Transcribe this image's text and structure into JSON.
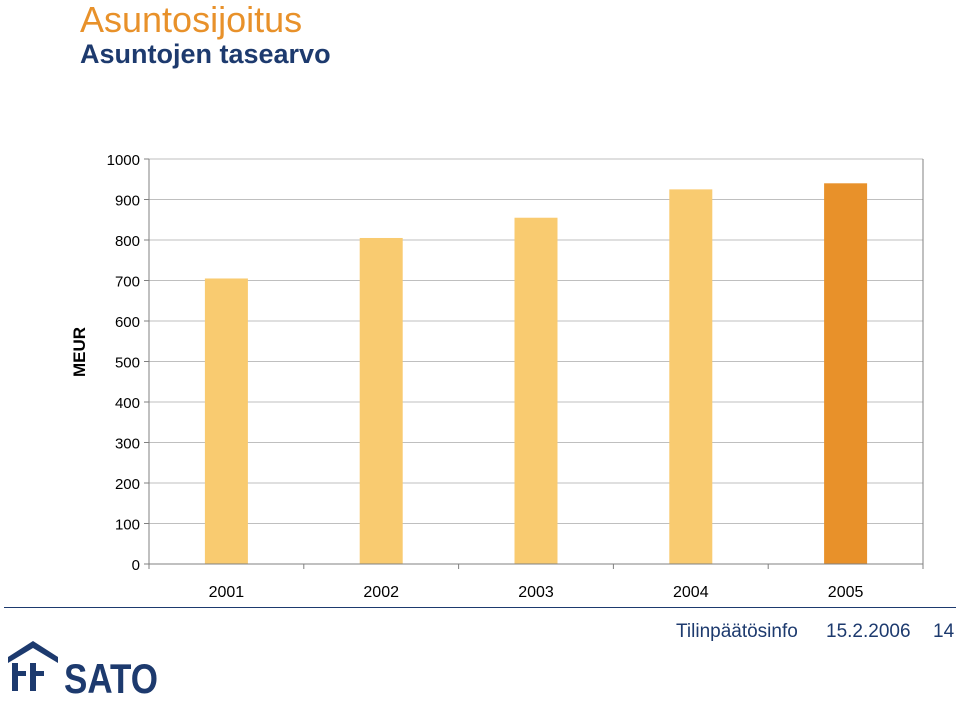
{
  "header": {
    "title": "Asuntosijoitus",
    "subtitle": "Asuntojen tasearvo"
  },
  "chart_data": {
    "type": "bar",
    "title": "",
    "xlabel": "",
    "ylabel": "MEUR",
    "categories": [
      "2001",
      "2002",
      "2003",
      "2004",
      "2005"
    ],
    "values": [
      705,
      805,
      855,
      925,
      940
    ],
    "ylim": [
      0,
      1000
    ],
    "yticks": [
      0,
      100,
      200,
      300,
      400,
      500,
      600,
      700,
      800,
      900,
      1000
    ],
    "grid": true,
    "legend": "none",
    "colors": {
      "bar": "#f9cb70",
      "highlight_bar": "#e8912a",
      "highlight_index": 4,
      "gridline": "#bfbfbf"
    }
  },
  "footer": {
    "title": "Tilinpäätösinfo",
    "date": "15.2.2006",
    "page": "14"
  },
  "logo": {
    "text": "SATO",
    "color": "#1d3a6e",
    "icon": "house-logo-icon"
  }
}
